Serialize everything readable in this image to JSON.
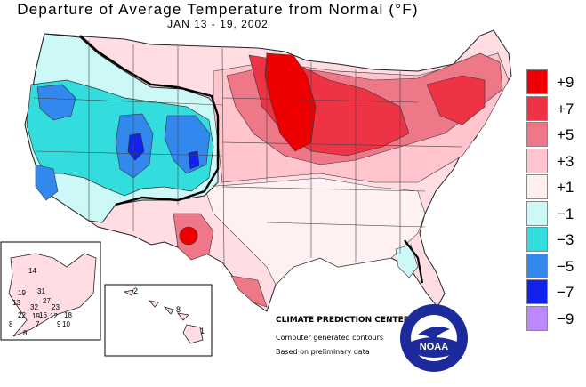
{
  "title": "Departure of Average Temperature from Normal (°F)",
  "subtitle": "JAN 13 - 19, 2002",
  "legend": [
    {
      "label": "+9",
      "color": "#ee0000"
    },
    {
      "label": "+7",
      "color": "#ee3344"
    },
    {
      "label": "+5",
      "color": "#ee7788"
    },
    {
      "label": "+3",
      "color": "#ffc4cc"
    },
    {
      "label": "+1",
      "color": "#fff0f0"
    },
    {
      "label": "−1",
      "color": "#ccf8f8"
    },
    {
      "label": "−3",
      "color": "#33dddd"
    },
    {
      "label": "−5",
      "color": "#3388ee"
    },
    {
      "label": "−7",
      "color": "#1122ee"
    },
    {
      "label": "−9",
      "color": "#bb88ff"
    }
  ],
  "credits": {
    "center": "CLIMATE PREDICTION CENTER, NOAA",
    "line2": "Computer generated contours",
    "line3": "Based on preliminary data"
  },
  "alaska_values": [
    "14",
    "19",
    "31",
    "27",
    "13",
    "32",
    "23",
    "22",
    "19",
    "16",
    "12",
    "18",
    "8",
    "10",
    "9",
    "7",
    "8"
  ],
  "hawaii_values": [
    "2",
    "8",
    "1"
  ],
  "logo_text": "NOAA"
}
